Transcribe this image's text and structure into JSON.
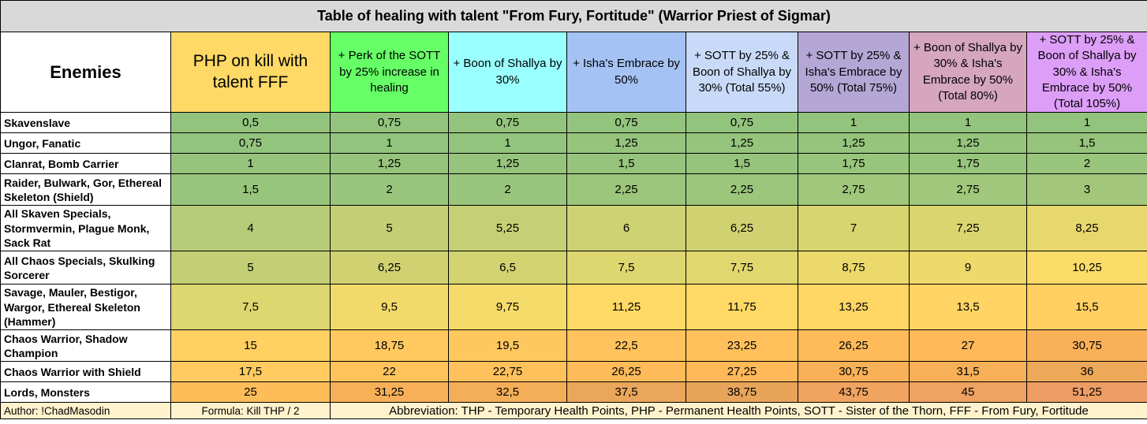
{
  "title": "Table of healing with talent \"From Fury, Fortitude\" (Warrior Priest of Sigmar)",
  "header": {
    "enemies": "Enemies",
    "columns": [
      {
        "label": "PHP on kill with talent FFF",
        "color": "#ffd966"
      },
      {
        "label": "+ Perk of the SOTT by 25% increase in healing",
        "color": "#66ff66"
      },
      {
        "label": "+ Boon of Shallya by 30%",
        "color": "#99ffff"
      },
      {
        "label": "+ Isha's Embrace by 50%",
        "color": "#a4c2f4"
      },
      {
        "label": "+ SOTT by 25% & Boon of Shallya by 30% (Total 55%)",
        "color": "#c9daf8"
      },
      {
        "label": "+ SOTT by 25% & Isha's Embrace by 50% (Total 75%)",
        "color": "#b4a7d6"
      },
      {
        "label": "+ Boon of Shallya by 30% & Isha's Embrace by 50% (Total 80%)",
        "color": "#d5a6bd"
      },
      {
        "label": "+ SOTT by 25% & Boon of Shallya by 30% & Isha's Embrace by 50% (Total 105%)",
        "color": "#dd9ef8"
      }
    ]
  },
  "rows": [
    {
      "enemy": "Skavenslave",
      "values": [
        "0,5",
        "0,75",
        "0,75",
        "0,75",
        "0,75",
        "1",
        "1",
        "1"
      ],
      "colors": [
        "#93c47d",
        "#93c47d",
        "#93c47d",
        "#93c47d",
        "#93c47d",
        "#93c47d",
        "#93c47d",
        "#93c47d"
      ]
    },
    {
      "enemy": "Ungor, Fanatic",
      "values": [
        "0,75",
        "1",
        "1",
        "1,25",
        "1,25",
        "1,25",
        "1,25",
        "1,5"
      ],
      "colors": [
        "#93c47d",
        "#93c47d",
        "#93c47d",
        "#96c47c",
        "#96c47c",
        "#96c47c",
        "#96c47c",
        "#96c47c"
      ]
    },
    {
      "enemy": "Clanrat, Bomb Carrier",
      "values": [
        "1",
        "1,25",
        "1,25",
        "1,5",
        "1,5",
        "1,75",
        "1,75",
        "2"
      ],
      "colors": [
        "#96c47c",
        "#96c47c",
        "#96c47c",
        "#96c47c",
        "#96c47c",
        "#98c57c",
        "#98c57c",
        "#9ac57c"
      ]
    },
    {
      "enemy": "Raider, Bulwark, Gor, Ethereal Skeleton (Shield)",
      "values": [
        "1,5",
        "2",
        "2",
        "2,25",
        "2,25",
        "2,75",
        "2,75",
        "3"
      ],
      "colors": [
        "#98c57c",
        "#9ac57c",
        "#9ac57c",
        "#9cc67b",
        "#9cc67b",
        "#a0c77b",
        "#a0c77b",
        "#a2c77b"
      ]
    },
    {
      "enemy": "All Skaven Specials, Stormvermin, Plague Monk, Sack Rat",
      "values": [
        "4",
        "5",
        "5,25",
        "6",
        "6,25",
        "7",
        "7,25",
        "8,25"
      ],
      "colors": [
        "#b7cc78",
        "#c3cf75",
        "#c5d075",
        "#cdd273",
        "#d0d272",
        "#d8d470",
        "#dbd56f",
        "#e6d86d"
      ]
    },
    {
      "enemy": "All Chaos Specials, Skulking Sorcerer",
      "values": [
        "5",
        "6,25",
        "6,5",
        "7,5",
        "7,75",
        "8,75",
        "9",
        "10,25"
      ],
      "colors": [
        "#c3cf75",
        "#d0d272",
        "#d3d372",
        "#ded66f",
        "#e1d76e",
        "#ebd96c",
        "#eed96b",
        "#fbdc68"
      ]
    },
    {
      "enemy": "Savage, Mauler, Bestigor, Wargor, Ethereal Skeleton (Hammer)",
      "values": [
        "7,5",
        "9,5",
        "9,75",
        "11,25",
        "11,75",
        "13,25",
        "13,5",
        "15,5"
      ],
      "colors": [
        "#ded66f",
        "#f2da6a",
        "#f5db69",
        "#ffd966",
        "#ffd865",
        "#ffd564",
        "#ffd464",
        "#ffcf62"
      ]
    },
    {
      "enemy": "Chaos Warrior, Shadow Champion",
      "values": [
        "15",
        "18,75",
        "19,5",
        "22,5",
        "23,25",
        "26,25",
        "27",
        "30,75"
      ],
      "colors": [
        "#ffd062",
        "#ffc95f",
        "#ffc85f",
        "#ffc25c",
        "#ffc05b",
        "#ffbb59",
        "#ffb958",
        "#f9b158"
      ]
    },
    {
      "enemy": "Chaos Warrior with Shield",
      "values": [
        "17,5",
        "22",
        "22,75",
        "26,25",
        "27,25",
        "30,75",
        "31,5",
        "36"
      ],
      "colors": [
        "#ffcb60",
        "#ffc35c",
        "#ffc15c",
        "#ffbb59",
        "#ffb958",
        "#f9b158",
        "#f7b058",
        "#eda859"
      ]
    },
    {
      "enemy": "Lords, Monsters",
      "values": [
        "25",
        "31,25",
        "32,5",
        "37,5",
        "38,75",
        "43,75",
        "45",
        "51,25"
      ],
      "colors": [
        "#ffbd5a",
        "#f8b058",
        "#f5ae58",
        "#eaa65a",
        "#e8a55a",
        "#f0a45f",
        "#efa261",
        "#ee9d64"
      ]
    }
  ],
  "footer": {
    "author": "Author: !ChadMasodin",
    "formula": "Formula: Kill THP / 2",
    "abbreviation": "Abbreviation: THP - Temporary Health Points, PHP - Permanent Health Points, SOTT - Sister of the Thorn, FFF - From Fury, Fortitude"
  }
}
